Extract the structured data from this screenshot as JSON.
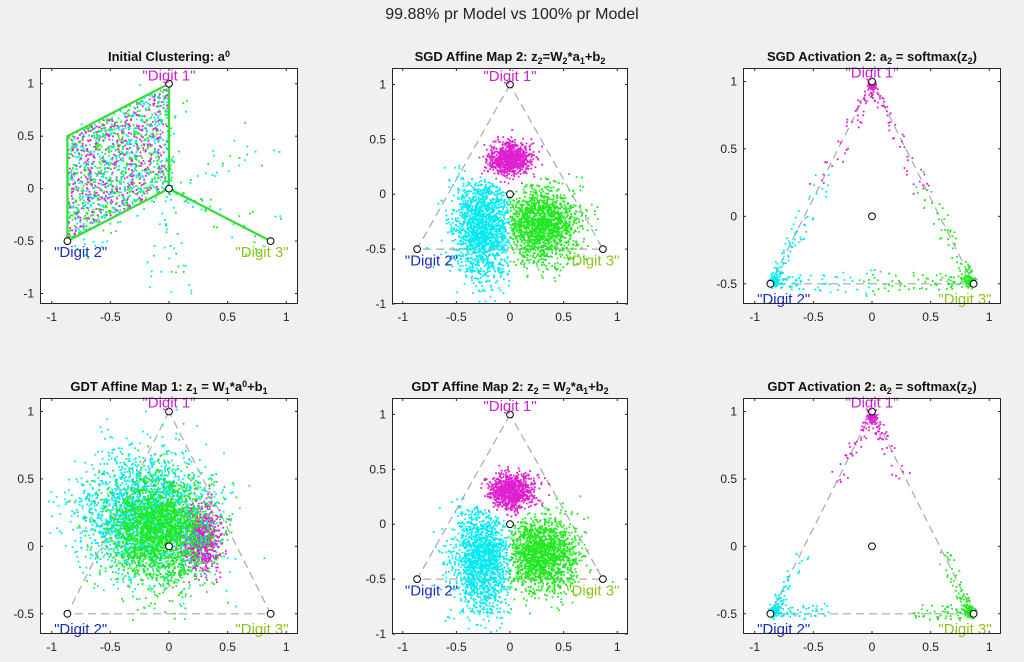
{
  "figure": {
    "suptitle": "99.88% pr Model vs 100% pr Model"
  },
  "colors": {
    "digit1": "#e020d0",
    "digit2": "#00eaf0",
    "digit3": "#22e822",
    "label1": "#cc22cc",
    "label2": "#1a2dbf",
    "label3": "#8fc21a",
    "dashed": "#a8a8a8",
    "hexagon": "#33dd33"
  },
  "chart_data": [
    {
      "type": "scatter",
      "id": "p1",
      "title_parts": [
        [
          "Initial Clustering: a",
          "n"
        ],
        [
          "0",
          "sup"
        ]
      ],
      "xlim": [
        -1.1,
        1.1
      ],
      "ylim": [
        -1.1,
        1.15
      ],
      "xticks": [
        -1,
        -0.5,
        0,
        0.5,
        1
      ],
      "yticks": [
        -1,
        -0.5,
        0,
        0.5,
        1
      ],
      "tick_labels_x": [
        "-1",
        "-0.5",
        "0",
        "0.5",
        "1"
      ],
      "tick_labels_y": [
        "-1",
        "-0.5",
        "0",
        "0.5",
        "1"
      ],
      "vertex_labels": [
        "\"Digit 1\"",
        "\"Digit 2\"",
        "\"Digit 3\""
      ],
      "markers": [
        [
          0,
          1
        ],
        [
          -0.866,
          -0.5
        ],
        [
          0.866,
          -0.5
        ],
        [
          0,
          0
        ]
      ],
      "triangle": false,
      "hexagon": true,
      "series": [
        {
          "name": "hex-parallelogram",
          "dist": "para",
          "colors": [
            "digit2",
            "digit1",
            "digit3"
          ],
          "n": 1500
        },
        {
          "name": "hex-spokes",
          "dist": "hexspokes",
          "colors": [
            "digit2",
            "digit3"
          ],
          "n": 260
        }
      ]
    },
    {
      "type": "scatter",
      "id": "p2",
      "title_parts": [
        [
          "SGD Affine Map 2: z",
          "n"
        ],
        [
          "2",
          "sub"
        ],
        [
          "=W",
          "n"
        ],
        [
          "2",
          "sub"
        ],
        [
          "*a",
          "n"
        ],
        [
          "1",
          "sub"
        ],
        [
          "+b",
          "n"
        ],
        [
          "2",
          "sub"
        ]
      ],
      "xlim": [
        -1.1,
        1.1
      ],
      "ylim": [
        -1,
        1.15
      ],
      "xticks": [
        -1,
        -0.5,
        0,
        0.5,
        1
      ],
      "yticks": [
        -1,
        -0.5,
        0,
        0.5,
        1
      ],
      "tick_labels_x": [
        "-1",
        "-0.5",
        "0",
        "0.5",
        "1"
      ],
      "tick_labels_y": [
        "-1",
        "-0.5",
        "0",
        "0.5",
        "1"
      ],
      "vertex_labels": [
        "\"Digit 1\"",
        "\"Digit 2\"",
        "\"Digit 3\""
      ],
      "markers": [
        [
          0,
          1
        ],
        [
          -0.866,
          -0.5
        ],
        [
          0.866,
          -0.5
        ],
        [
          0,
          0
        ]
      ],
      "triangle": true,
      "hexagon": false,
      "series": [
        {
          "name": "Digit 1",
          "dist": "gauss",
          "color": "digit1",
          "cx": 0.0,
          "cy": 0.32,
          "sx": 0.09,
          "sy": 0.075,
          "n": 900,
          "clip": "c1"
        },
        {
          "name": "Digit 2",
          "dist": "gauss",
          "color": "digit2",
          "cx": -0.25,
          "cy": -0.3,
          "sx": 0.14,
          "sy": 0.24,
          "n": 1600,
          "clip": "c2"
        },
        {
          "name": "Digit 3",
          "dist": "gauss",
          "color": "digit3",
          "cx": 0.3,
          "cy": -0.28,
          "sx": 0.17,
          "sy": 0.17,
          "n": 1600,
          "clip": "c3"
        }
      ]
    },
    {
      "type": "scatter",
      "id": "p3",
      "title_parts": [
        [
          "SGD Activation 2: a",
          "n"
        ],
        [
          "2",
          "sub"
        ],
        [
          " = softmax(z",
          "n"
        ],
        [
          "2",
          "sub"
        ],
        [
          ")",
          "n"
        ]
      ],
      "xlim": [
        -1.1,
        1.1
      ],
      "ylim": [
        -0.65,
        1.1
      ],
      "xticks": [
        -1,
        -0.5,
        0,
        0.5,
        1
      ],
      "yticks": [
        -0.5,
        0,
        0.5,
        1
      ],
      "tick_labels_x": [
        "-1",
        "-0.5",
        "0",
        "0.5",
        "1"
      ],
      "tick_labels_y": [
        "-0.5",
        "0",
        "0.5",
        "1"
      ],
      "vertex_labels": [
        "\"Digit 1\"",
        "\"Digit 2\"",
        "\"Digit 3\""
      ],
      "markers": [
        [
          0,
          1
        ],
        [
          -0.866,
          -0.5
        ],
        [
          0.866,
          -0.5
        ],
        [
          0,
          0
        ]
      ],
      "triangle": true,
      "hexagon": false,
      "series": [
        {
          "name": "Digit 1",
          "dist": "vertex",
          "color": "digit1",
          "v": 0,
          "n": 160,
          "spread": 0.55
        },
        {
          "name": "Digit 2",
          "dist": "vertex",
          "color": "digit2",
          "v": 1,
          "n": 220,
          "spread": 0.55
        },
        {
          "name": "Digit 3",
          "dist": "vertex",
          "color": "digit3",
          "v": 2,
          "n": 200,
          "spread": 0.55
        }
      ]
    },
    {
      "type": "scatter",
      "id": "p4",
      "title_parts": [
        [
          "GDT Affine Map 1: z",
          "n"
        ],
        [
          "1",
          "sub"
        ],
        [
          " = W",
          "n"
        ],
        [
          "1",
          "sub"
        ],
        [
          "*a",
          "n"
        ],
        [
          "0",
          "sup"
        ],
        [
          "+b",
          "n"
        ],
        [
          "1",
          "sub"
        ]
      ],
      "xlim": [
        -1.1,
        1.1
      ],
      "ylim": [
        -0.65,
        1.1
      ],
      "xticks": [
        -1,
        -0.5,
        0,
        0.5,
        1
      ],
      "yticks": [
        -0.5,
        0,
        0.5,
        1
      ],
      "tick_labels_x": [
        "-1",
        "-0.5",
        "0",
        "0.5",
        "1"
      ],
      "tick_labels_y": [
        "-0.5",
        "0",
        "0.5",
        "1"
      ],
      "vertex_labels": [
        "\"Digit 1\"",
        "\"Digit 2\"",
        "\"Digit 3\""
      ],
      "markers": [
        [
          0,
          1
        ],
        [
          -0.866,
          -0.5
        ],
        [
          0.866,
          -0.5
        ],
        [
          0,
          0
        ]
      ],
      "triangle": true,
      "hexagon": false,
      "series": [
        {
          "name": "Digit 1",
          "dist": "gauss",
          "color": "digit1",
          "cx": 0.28,
          "cy": 0.05,
          "sx": 0.08,
          "sy": 0.12,
          "n": 700
        },
        {
          "name": "Digit 2",
          "dist": "gauss",
          "color": "digit2",
          "cx": -0.2,
          "cy": 0.22,
          "sx": 0.27,
          "sy": 0.22,
          "n": 2200
        },
        {
          "name": "Digit 3",
          "dist": "gauss",
          "color": "digit3",
          "cx": -0.08,
          "cy": 0.12,
          "sx": 0.22,
          "sy": 0.2,
          "n": 2200
        }
      ]
    },
    {
      "type": "scatter",
      "id": "p5",
      "title_parts": [
        [
          "GDT Affine Map 2: z",
          "n"
        ],
        [
          "2",
          "sub"
        ],
        [
          " = W",
          "n"
        ],
        [
          "2",
          "sub"
        ],
        [
          "*a",
          "n"
        ],
        [
          "1",
          "sub"
        ],
        [
          "+b",
          "n"
        ],
        [
          "2",
          "sub"
        ]
      ],
      "xlim": [
        -1.1,
        1.1
      ],
      "ylim": [
        -1,
        1.15
      ],
      "xticks": [
        -1,
        -0.5,
        0,
        0.5,
        1
      ],
      "yticks": [
        -1,
        -0.5,
        0,
        0.5,
        1
      ],
      "tick_labels_x": [
        "-1",
        "-0.5",
        "0",
        "0.5",
        "1"
      ],
      "tick_labels_y": [
        "-1",
        "-0.5",
        "0",
        "0.5",
        "1"
      ],
      "vertex_labels": [
        "\"Digit 1\"",
        "\"Digit 2\"",
        "\"Digit 3\""
      ],
      "markers": [
        [
          0,
          1
        ],
        [
          -0.866,
          -0.5
        ],
        [
          0.866,
          -0.5
        ],
        [
          0,
          0
        ]
      ],
      "triangle": true,
      "hexagon": false,
      "series": [
        {
          "name": "Digit 1",
          "dist": "gauss",
          "color": "digit1",
          "cx": 0.02,
          "cy": 0.3,
          "sx": 0.1,
          "sy": 0.08,
          "n": 900,
          "clip": "c1"
        },
        {
          "name": "Digit 2",
          "dist": "gauss",
          "color": "digit2",
          "cx": -0.25,
          "cy": -0.32,
          "sx": 0.14,
          "sy": 0.24,
          "n": 1600,
          "clip": "c2"
        },
        {
          "name": "Digit 3",
          "dist": "gauss",
          "color": "digit3",
          "cx": 0.3,
          "cy": -0.28,
          "sx": 0.17,
          "sy": 0.17,
          "n": 1600,
          "clip": "c3"
        }
      ]
    },
    {
      "type": "scatter",
      "id": "p6",
      "title_parts": [
        [
          "GDT Activation 2: a",
          "n"
        ],
        [
          "2",
          "sub"
        ],
        [
          " = softmax(z",
          "n"
        ],
        [
          "2",
          "sub"
        ],
        [
          ")",
          "n"
        ]
      ],
      "xlim": [
        -1.1,
        1.1
      ],
      "ylim": [
        -0.65,
        1.1
      ],
      "xticks": [
        -1,
        -0.5,
        0,
        0.5,
        1
      ],
      "yticks": [
        -0.5,
        0,
        0.5,
        1
      ],
      "tick_labels_x": [
        "-1",
        "-0.5",
        "0",
        "0.5",
        "1"
      ],
      "tick_labels_y": [
        "-0.5",
        "0",
        "0.5",
        "1"
      ],
      "vertex_labels": [
        "\"Digit 1\"",
        "\"Digit 2\"",
        "\"Digit 3\""
      ],
      "markers": [
        [
          0,
          1
        ],
        [
          -0.866,
          -0.5
        ],
        [
          0.866,
          -0.5
        ],
        [
          0,
          0
        ]
      ],
      "triangle": true,
      "hexagon": false,
      "series": [
        {
          "name": "Digit 1",
          "dist": "vertex",
          "color": "digit1",
          "v": 0,
          "n": 160,
          "spread": 0.35
        },
        {
          "name": "Digit 2",
          "dist": "vertex",
          "color": "digit2",
          "v": 1,
          "n": 200,
          "spread": 0.3
        },
        {
          "name": "Digit 3",
          "dist": "vertex",
          "color": "digit3",
          "v": 2,
          "n": 200,
          "spread": 0.3
        }
      ]
    }
  ]
}
